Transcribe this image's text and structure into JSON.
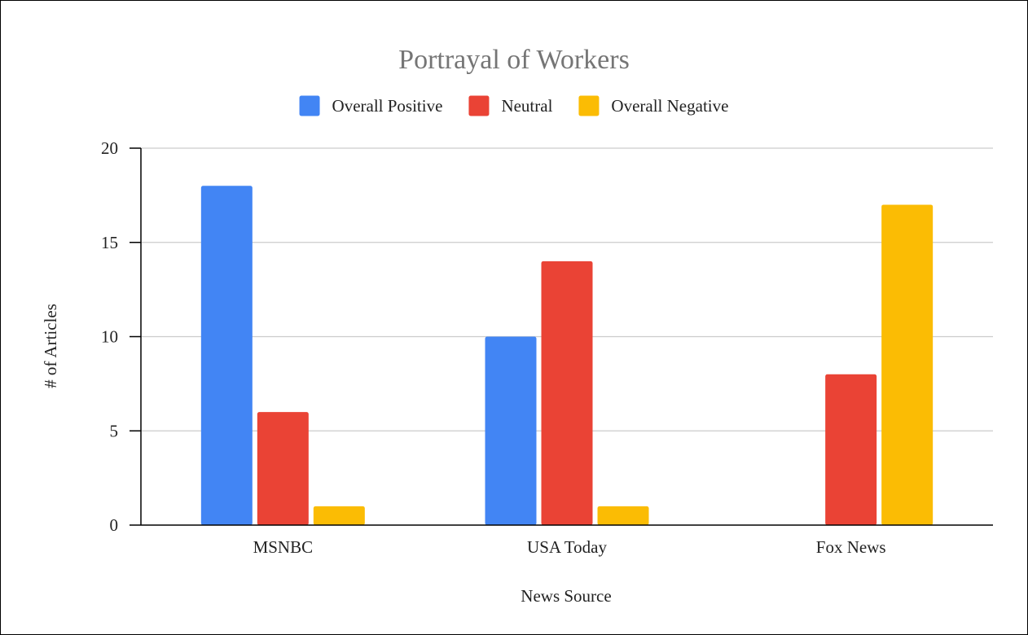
{
  "chart_data": {
    "type": "bar",
    "title": "Portrayal of Workers",
    "xlabel": "News Source",
    "ylabel": "# of Articles",
    "categories": [
      "MSNBC",
      "USA Today",
      "Fox News"
    ],
    "series": [
      {
        "name": "Overall Positive",
        "color": "#4285f4",
        "values": [
          18,
          10,
          0
        ]
      },
      {
        "name": "Neutral",
        "color": "#ea4335",
        "values": [
          6,
          14,
          8
        ]
      },
      {
        "name": "Overall Negative",
        "color": "#fbbc04",
        "values": [
          1,
          1,
          17
        ]
      }
    ],
    "ylim": [
      0,
      20
    ],
    "yticks": [
      0,
      5,
      10,
      15,
      20
    ],
    "grid": true,
    "legend_position": "top"
  }
}
